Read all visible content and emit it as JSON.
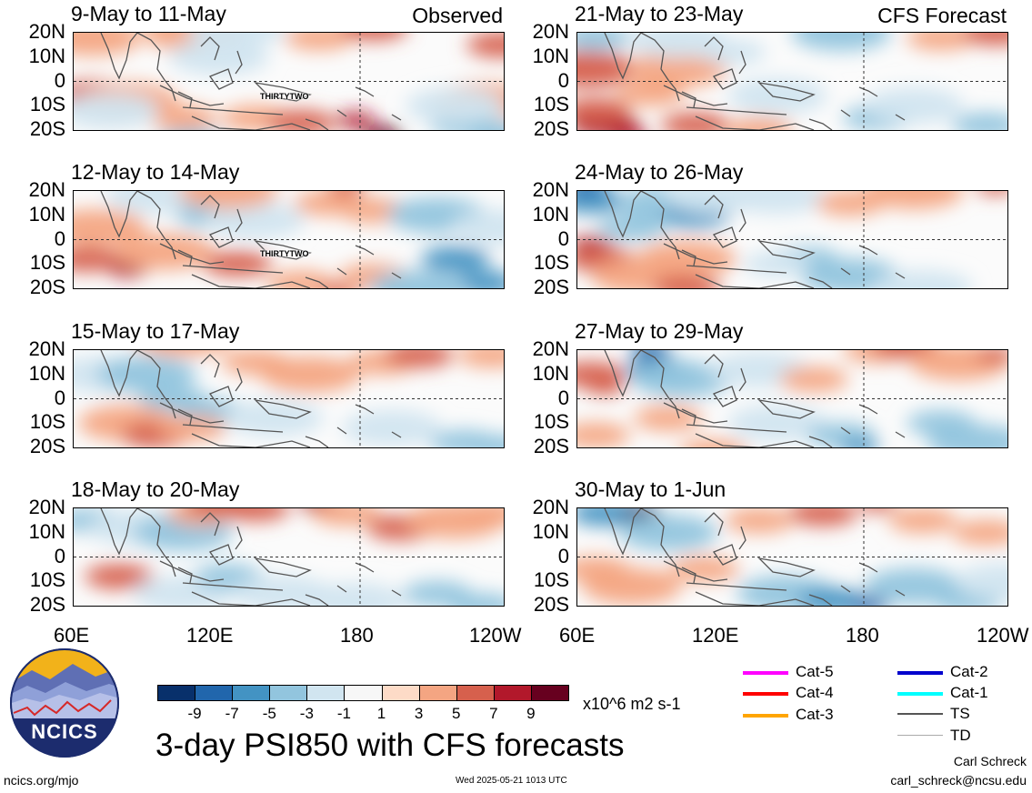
{
  "panels": [
    {
      "title": "9-May to 11-May",
      "tag": "Observed",
      "storm_label": "THIRTYTWO"
    },
    {
      "title": "21-May to 23-May",
      "tag": "CFS Forecast",
      "storm_label": ""
    },
    {
      "title": "12-May to 14-May",
      "tag": "",
      "storm_label": "THIRTYTWO"
    },
    {
      "title": "24-May to 26-May",
      "tag": "",
      "storm_label": ""
    },
    {
      "title": "15-May to 17-May",
      "tag": "",
      "storm_label": ""
    },
    {
      "title": "27-May to 29-May",
      "tag": "",
      "storm_label": ""
    },
    {
      "title": "18-May to 20-May",
      "tag": "",
      "storm_label": ""
    },
    {
      "title": "30-May to 1-Jun",
      "tag": "",
      "storm_label": ""
    }
  ],
  "lat_labels": [
    "20N",
    "10N",
    "0",
    "10S",
    "20S"
  ],
  "lon_labels": [
    "60E",
    "120E",
    "180",
    "120W"
  ],
  "colorbar": {
    "colors": [
      "#08306b",
      "#2166ac",
      "#4393c3",
      "#92c5de",
      "#d1e5f0",
      "#f7f7f7",
      "#fddbc7",
      "#f4a582",
      "#d6604d",
      "#b2182b",
      "#67001f"
    ],
    "labels": [
      "-9",
      "-7",
      "-5",
      "-3",
      "-1",
      "1",
      "3",
      "5",
      "7",
      "9"
    ],
    "units": "x10^6 m2 s-1"
  },
  "legend": [
    {
      "label": "Cat-5",
      "color": "#ff00ff"
    },
    {
      "label": "Cat-4",
      "color": "#ff0000"
    },
    {
      "label": "Cat-3",
      "color": "#ffa500"
    },
    {
      "label": "Cat-2",
      "color": "#0000cd"
    },
    {
      "label": "Cat-1",
      "color": "#00ffff"
    },
    {
      "label": "TS",
      "color": "#555555"
    },
    {
      "label": "TD",
      "color": "#aaaaaa"
    }
  ],
  "logo": {
    "text": "NCICS"
  },
  "main_title": "3-day PSI850 with CFS forecasts",
  "footer": {
    "left": "ncics.org/mjo",
    "center": "Wed 2025-05-21 1013 UTC",
    "author": "Carl Schreck",
    "email": "carl_schreck@ncsu.edu"
  },
  "map_fields": [
    [
      [
        20,
        18,
        3,
        2
      ],
      [
        130,
        20,
        3,
        2
      ],
      [
        160,
        10,
        -1,
        2
      ],
      [
        180,
        22,
        -1,
        2
      ],
      [
        270,
        18,
        3,
        1
      ],
      [
        330,
        22,
        5,
        1
      ],
      [
        470,
        15,
        5,
        1
      ],
      [
        450,
        -8,
        3,
        2
      ],
      [
        200,
        -15,
        3,
        1
      ],
      [
        250,
        -17,
        5,
        1
      ],
      [
        310,
        -16,
        7,
        0
      ],
      [
        340,
        -22,
        9,
        0
      ],
      [
        20,
        -5,
        5,
        1
      ],
      [
        60,
        -8,
        3,
        2
      ],
      [
        120,
        -15,
        3,
        1
      ],
      [
        430,
        -18,
        -3,
        1
      ],
      [
        420,
        -10,
        -1,
        2
      ],
      [
        470,
        -22,
        -3,
        1
      ],
      [
        130,
        -25,
        -3,
        1
      ],
      [
        40,
        -12,
        -1,
        2
      ]
    ],
    [
      [
        10,
        5,
        5,
        2
      ],
      [
        30,
        -18,
        7,
        1
      ],
      [
        55,
        -22,
        7,
        0
      ],
      [
        20,
        -12,
        5,
        1
      ],
      [
        110,
        5,
        3,
        2
      ],
      [
        130,
        -18,
        5,
        1
      ],
      [
        200,
        -20,
        3,
        1
      ],
      [
        20,
        18,
        -3,
        1
      ],
      [
        110,
        17,
        -1,
        2
      ],
      [
        170,
        12,
        -1,
        1
      ],
      [
        290,
        20,
        -3,
        2
      ],
      [
        400,
        18,
        3,
        1
      ],
      [
        460,
        20,
        5,
        1
      ],
      [
        220,
        -6,
        -1,
        2
      ],
      [
        330,
        -15,
        -3,
        1
      ],
      [
        450,
        -18,
        -3,
        1
      ],
      [
        370,
        -10,
        -1,
        2
      ],
      [
        80,
        -5,
        3,
        1
      ]
    ],
    [
      [
        15,
        -8,
        5,
        1
      ],
      [
        60,
        -12,
        7,
        0
      ],
      [
        25,
        5,
        3,
        2
      ],
      [
        100,
        -5,
        3,
        2
      ],
      [
        180,
        -10,
        5,
        1
      ],
      [
        250,
        -18,
        3,
        1
      ],
      [
        290,
        -22,
        5,
        0
      ],
      [
        330,
        -15,
        3,
        1
      ],
      [
        90,
        18,
        -1,
        2
      ],
      [
        150,
        10,
        -3,
        1
      ],
      [
        200,
        8,
        -1,
        2
      ],
      [
        170,
        20,
        3,
        2
      ],
      [
        280,
        15,
        3,
        1
      ],
      [
        300,
        22,
        5,
        0
      ],
      [
        330,
        12,
        3,
        1
      ],
      [
        400,
        10,
        -3,
        2
      ],
      [
        420,
        -8,
        -5,
        1
      ],
      [
        450,
        -18,
        -5,
        1
      ],
      [
        380,
        -20,
        -3,
        2
      ],
      [
        470,
        5,
        -1,
        2
      ]
    ],
    [
      [
        15,
        16,
        -5,
        1
      ],
      [
        10,
        22,
        -7,
        0
      ],
      [
        15,
        -2,
        7,
        0
      ],
      [
        25,
        -8,
        5,
        1
      ],
      [
        70,
        -15,
        3,
        2
      ],
      [
        60,
        5,
        -3,
        1
      ],
      [
        100,
        15,
        -3,
        2
      ],
      [
        130,
        10,
        -5,
        1
      ],
      [
        150,
        18,
        -1,
        2
      ],
      [
        120,
        -8,
        3,
        2
      ],
      [
        120,
        -20,
        5,
        1
      ],
      [
        220,
        18,
        -1,
        2
      ],
      [
        300,
        15,
        3,
        1
      ],
      [
        370,
        20,
        3,
        2
      ],
      [
        460,
        22,
        5,
        0
      ],
      [
        250,
        -8,
        -3,
        1
      ],
      [
        300,
        -15,
        -3,
        2
      ],
      [
        380,
        -20,
        -1,
        2
      ],
      [
        220,
        -10,
        -1,
        1
      ]
    ],
    [
      [
        30,
        10,
        -1,
        2
      ],
      [
        80,
        10,
        -3,
        2
      ],
      [
        110,
        0,
        -3,
        1
      ],
      [
        150,
        -5,
        -3,
        1
      ],
      [
        220,
        -8,
        -1,
        2
      ],
      [
        200,
        15,
        3,
        1
      ],
      [
        120,
        25,
        3,
        2
      ],
      [
        260,
        10,
        3,
        2
      ],
      [
        340,
        15,
        3,
        1
      ],
      [
        380,
        18,
        5,
        1
      ],
      [
        460,
        18,
        3,
        1
      ],
      [
        60,
        -10,
        3,
        2
      ],
      [
        90,
        -15,
        5,
        1
      ],
      [
        130,
        -12,
        3,
        1
      ],
      [
        350,
        -12,
        -1,
        2
      ],
      [
        430,
        -18,
        -3,
        1
      ],
      [
        470,
        -20,
        -3,
        1
      ]
    ],
    [
      [
        15,
        10,
        5,
        1
      ],
      [
        30,
        5,
        5,
        0
      ],
      [
        20,
        -15,
        3,
        1
      ],
      [
        90,
        12,
        -5,
        1
      ],
      [
        80,
        20,
        -7,
        0
      ],
      [
        115,
        8,
        -3,
        2
      ],
      [
        100,
        -8,
        3,
        1
      ],
      [
        200,
        12,
        -1,
        2
      ],
      [
        260,
        8,
        3,
        1
      ],
      [
        330,
        20,
        3,
        1
      ],
      [
        360,
        22,
        5,
        1
      ],
      [
        420,
        15,
        3,
        2
      ],
      [
        460,
        18,
        5,
        0
      ],
      [
        150,
        -22,
        3,
        1
      ],
      [
        220,
        -10,
        -1,
        2
      ],
      [
        290,
        -15,
        -3,
        1
      ],
      [
        310,
        -20,
        -5,
        0
      ],
      [
        400,
        -10,
        -3,
        1
      ],
      [
        440,
        -18,
        -3,
        2
      ]
    ],
    [
      [
        20,
        15,
        -3,
        1
      ],
      [
        70,
        12,
        -1,
        2
      ],
      [
        120,
        10,
        -3,
        2
      ],
      [
        140,
        18,
        3,
        1
      ],
      [
        160,
        22,
        5,
        1
      ],
      [
        200,
        20,
        5,
        1
      ],
      [
        270,
        22,
        7,
        0
      ],
      [
        300,
        18,
        3,
        1
      ],
      [
        360,
        12,
        5,
        1
      ],
      [
        420,
        15,
        3,
        2
      ],
      [
        460,
        18,
        3,
        1
      ],
      [
        50,
        -8,
        5,
        1
      ],
      [
        120,
        -15,
        -1,
        2
      ],
      [
        170,
        -8,
        -3,
        1
      ],
      [
        230,
        -15,
        -1,
        2
      ],
      [
        310,
        -18,
        -1,
        2
      ],
      [
        400,
        -15,
        -3,
        1
      ],
      [
        450,
        -20,
        -3,
        1
      ]
    ],
    [
      [
        30,
        18,
        -5,
        1
      ],
      [
        70,
        18,
        -9,
        0
      ],
      [
        100,
        10,
        -3,
        2
      ],
      [
        20,
        -5,
        3,
        1
      ],
      [
        60,
        -12,
        3,
        2
      ],
      [
        140,
        -5,
        3,
        1
      ],
      [
        200,
        15,
        3,
        1
      ],
      [
        270,
        18,
        5,
        1
      ],
      [
        330,
        22,
        5,
        0
      ],
      [
        380,
        15,
        3,
        1
      ],
      [
        450,
        10,
        3,
        1
      ],
      [
        230,
        -15,
        -3,
        2
      ],
      [
        280,
        -18,
        -5,
        1
      ],
      [
        320,
        -20,
        -7,
        0
      ],
      [
        370,
        -12,
        -3,
        2
      ],
      [
        430,
        -18,
        -3,
        1
      ],
      [
        470,
        -10,
        -1,
        2
      ]
    ]
  ]
}
